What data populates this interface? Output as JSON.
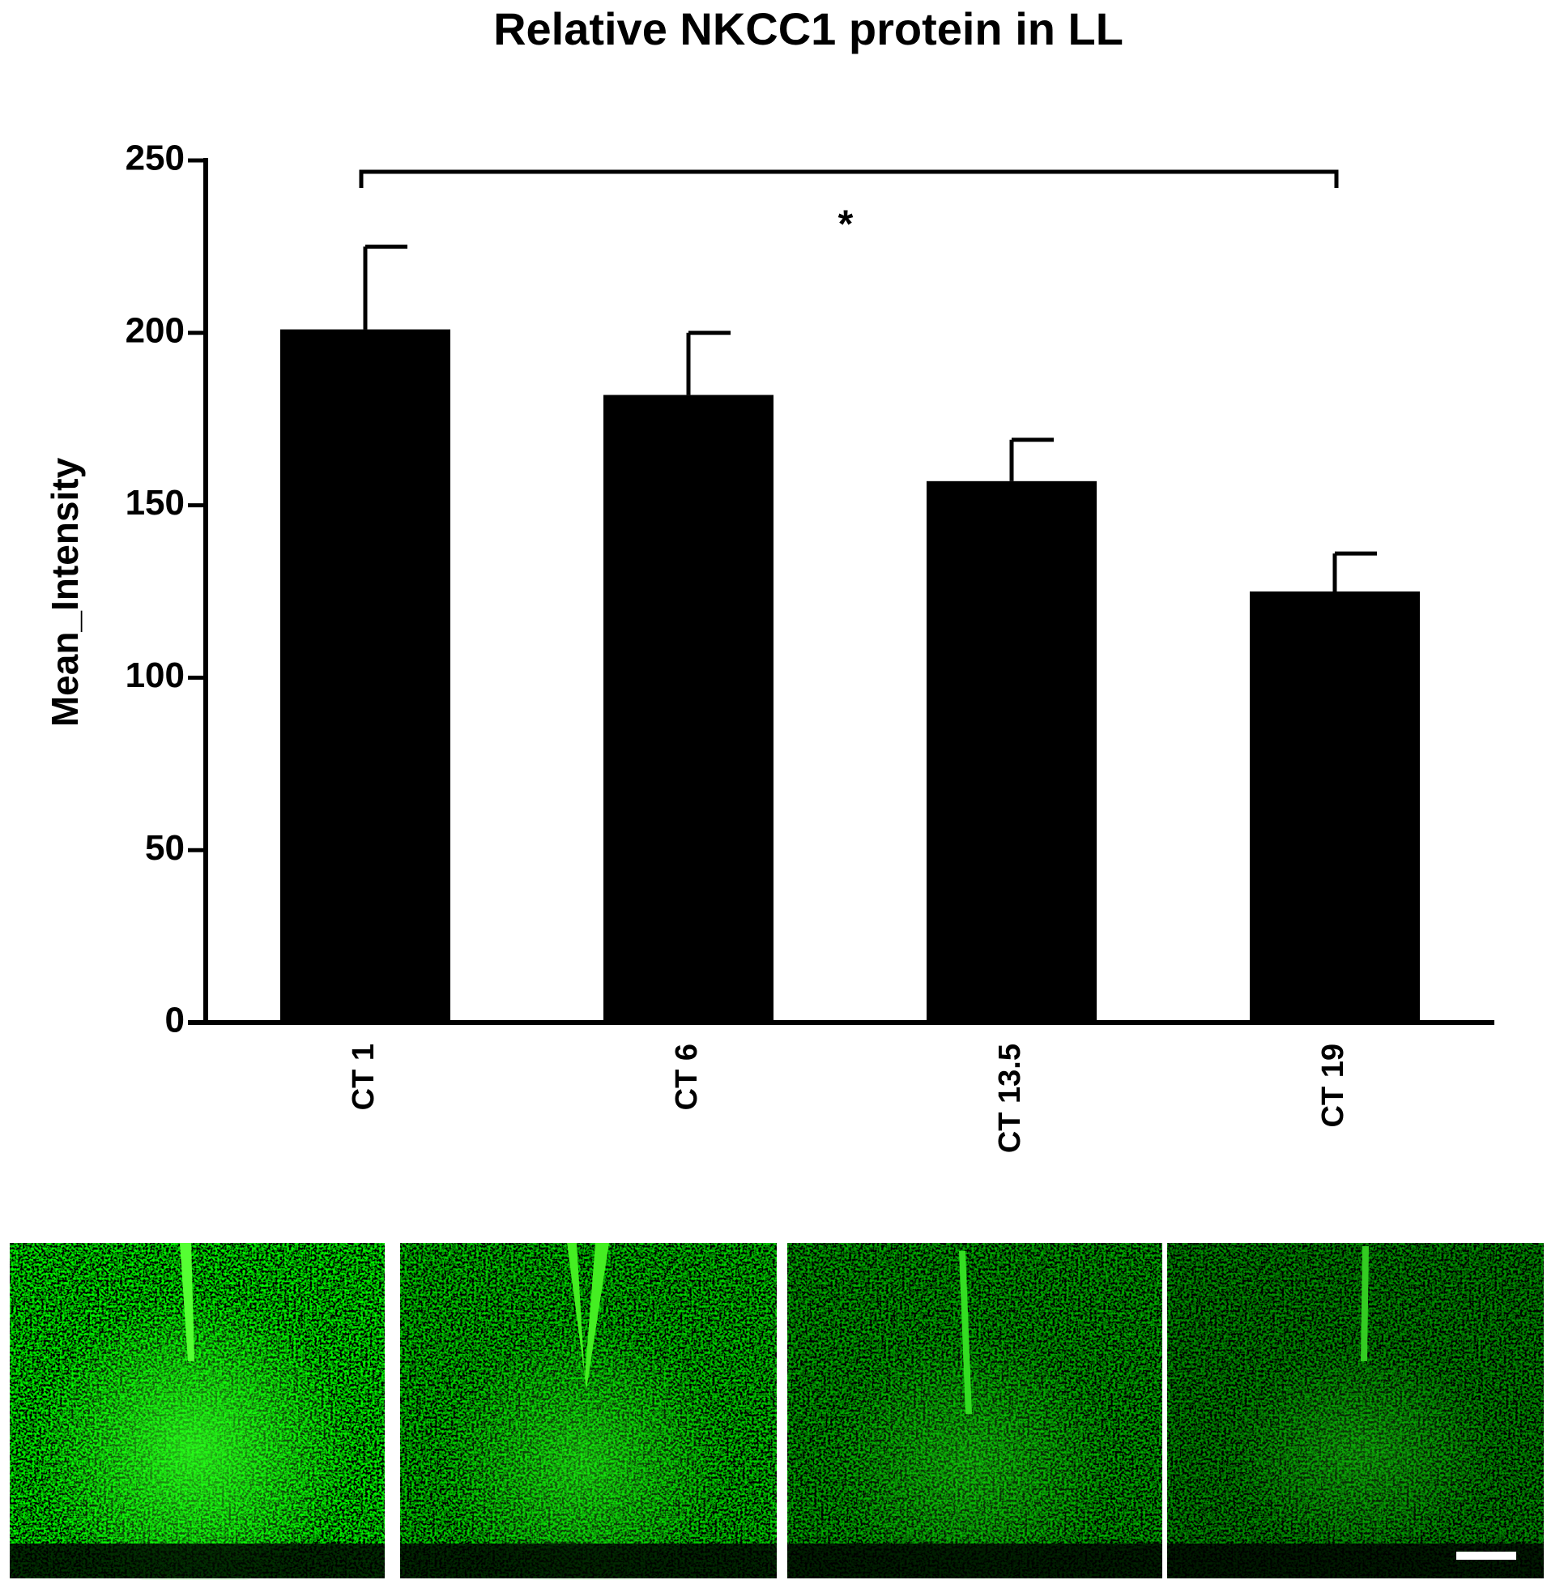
{
  "chart_data": {
    "type": "bar",
    "title": "Relative NKCC1 protein in LL",
    "ylabel": "Mean_Intensity",
    "categories": [
      "CT 1",
      "CT 6",
      "CT 13.5",
      "CT 19"
    ],
    "values": [
      201,
      182,
      157,
      125
    ],
    "errors": [
      24,
      18,
      12,
      11
    ],
    "color": "#000000",
    "ylim": [
      0,
      250
    ],
    "yticks": [
      0,
      50,
      100,
      150,
      200,
      250
    ],
    "annotations": [
      "*"
    ]
  }
}
